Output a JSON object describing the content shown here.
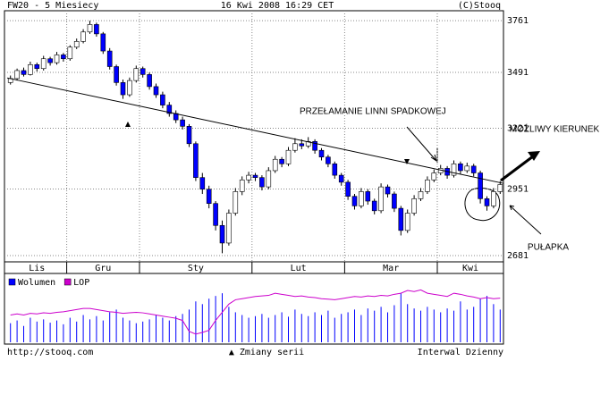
{
  "header": {
    "left": "FW20 - 5 Miesiecy",
    "center": "16 Kwi 2008 16:29 CET",
    "right": "(C)Stooq"
  },
  "footer": {
    "left": "http://stooq.com",
    "center": "▲ Zmiany serii",
    "right": "Interwal Dzienny"
  },
  "annotations": {
    "breakout": "PRZEŁAMANIE LINNI SPADKOWEJ",
    "direction": "MOŻLIWY KIERUNEK",
    "trap": "PUŁAPKA"
  },
  "chart_data": [
    {
      "type": "candlestick",
      "log_scale": true,
      "ylim": [
        2657,
        3815
      ],
      "yticks": [
        3761,
        3491,
        3221,
        2951,
        2681
      ],
      "grid": true,
      "up_color": "#ffffff",
      "down_color": "#0000ff",
      "trend_line": {
        "start": 3463,
        "end": 2975
      },
      "months": [
        {
          "label": "Lis",
          "candles": [
            [
              3440,
              3475,
              3430,
              3460
            ],
            [
              3460,
              3510,
              3450,
              3500
            ],
            [
              3500,
              3515,
              3470,
              3480
            ],
            [
              3480,
              3545,
              3475,
              3530
            ],
            [
              3530,
              3540,
              3495,
              3510
            ],
            [
              3510,
              3575,
              3500,
              3560
            ],
            [
              3560,
              3570,
              3525,
              3540
            ],
            [
              3540,
              3595,
              3530,
              3580
            ],
            [
              3580,
              3590,
              3545,
              3560
            ]
          ]
        },
        {
          "label": "Gru",
          "candles": [
            [
              3560,
              3630,
              3550,
              3620
            ],
            [
              3620,
              3665,
              3610,
              3650
            ],
            [
              3650,
              3715,
              3640,
              3700
            ],
            [
              3700,
              3760,
              3690,
              3740
            ],
            [
              3740,
              3750,
              3675,
              3690
            ],
            [
              3690,
              3700,
              3585,
              3600
            ],
            [
              3600,
              3615,
              3505,
              3520
            ],
            [
              3520,
              3530,
              3425,
              3440
            ],
            [
              3440,
              3455,
              3360,
              3380
            ],
            [
              3380,
              3465,
              3370,
              3450
            ],
            [
              3450,
              3525,
              3440,
              3510
            ]
          ]
        },
        {
          "label": "Sty",
          "candles": [
            [
              3510,
              3520,
              3465,
              3480
            ],
            [
              3480,
              3490,
              3405,
              3420
            ],
            [
              3420,
              3435,
              3365,
              3380
            ],
            [
              3380,
              3395,
              3315,
              3330
            ],
            [
              3330,
              3345,
              3275,
              3290
            ],
            [
              3290,
              3305,
              3245,
              3260
            ],
            [
              3260,
              3275,
              3215,
              3230
            ],
            [
              3230,
              3240,
              3135,
              3150
            ],
            [
              3150,
              3160,
              2985,
              3000
            ],
            [
              3000,
              3020,
              2930,
              2950
            ],
            [
              2950,
              2965,
              2870,
              2890
            ],
            [
              2890,
              2900,
              2780,
              2800
            ],
            [
              2800,
              2820,
              2690,
              2730
            ],
            [
              2730,
              2865,
              2720,
              2850
            ],
            [
              2850,
              2955,
              2840,
              2940
            ],
            [
              2940,
              3005,
              2925,
              2990
            ],
            [
              2990,
              3025,
              2975,
              3010
            ]
          ]
        },
        {
          "label": "Lut",
          "candles": [
            [
              3010,
              3020,
              2985,
              3000
            ],
            [
              3000,
              3010,
              2945,
              2960
            ],
            [
              2960,
              3045,
              2950,
              3030
            ],
            [
              3030,
              3095,
              3020,
              3080
            ],
            [
              3080,
              3090,
              3045,
              3060
            ],
            [
              3060,
              3135,
              3050,
              3120
            ],
            [
              3120,
              3175,
              3110,
              3150
            ],
            [
              3150,
              3170,
              3125,
              3140
            ],
            [
              3140,
              3180,
              3130,
              3160
            ],
            [
              3160,
              3170,
              3105,
              3120
            ],
            [
              3120,
              3130,
              3075,
              3090
            ],
            [
              3090,
              3100,
              3045,
              3060
            ],
            [
              3060,
              3070,
              2995,
              3010
            ],
            [
              3010,
              3020,
              2965,
              2980
            ]
          ]
        },
        {
          "label": "Mar",
          "candles": [
            [
              2980,
              2990,
              2905,
              2920
            ],
            [
              2920,
              2930,
              2865,
              2880
            ],
            [
              2880,
              2955,
              2870,
              2940
            ],
            [
              2940,
              2950,
              2885,
              2900
            ],
            [
              2900,
              2910,
              2845,
              2860
            ],
            [
              2860,
              2975,
              2850,
              2960
            ],
            [
              2960,
              2970,
              2915,
              2930
            ],
            [
              2930,
              2940,
              2855,
              2870
            ],
            [
              2870,
              2880,
              2760,
              2780
            ],
            [
              2780,
              2865,
              2770,
              2850
            ],
            [
              2850,
              2925,
              2840,
              2910
            ],
            [
              2910,
              2955,
              2900,
              2940
            ],
            [
              2940,
              3005,
              2930,
              2990
            ],
            [
              2990,
              3035,
              2980,
              3020
            ]
          ]
        },
        {
          "label": "Kwi",
          "candles": [
            [
              3020,
              3055,
              3010,
              3040
            ],
            [
              3040,
              3050,
              2995,
              3010
            ],
            [
              3010,
              3075,
              3000,
              3060
            ],
            [
              3060,
              3070,
              3015,
              3030
            ],
            [
              3030,
              3065,
              3020,
              3050
            ],
            [
              3050,
              3060,
              3005,
              3020
            ],
            [
              3020,
              3030,
              2890,
              2910
            ],
            [
              2910,
              2920,
              2860,
              2880
            ],
            [
              2880,
              2955,
              2870,
              2940
            ],
            [
              2940,
              2985,
              2930,
              2970
            ]
          ]
        }
      ]
    },
    {
      "type": "bar-line",
      "ylim": [
        0,
        100
      ],
      "series": [
        {
          "name": "Wolumen",
          "color": "#0000ff",
          "values": [
            35,
            40,
            30,
            45,
            38,
            42,
            36,
            40,
            33,
            45,
            38,
            50,
            42,
            48,
            40,
            55,
            60,
            45,
            40,
            35,
            38,
            42,
            50,
            45,
            40,
            48,
            52,
            60,
            75,
            70,
            80,
            85,
            90,
            65,
            55,
            50,
            45,
            48,
            52,
            45,
            50,
            55,
            47,
            60,
            52,
            48,
            55,
            50,
            58,
            45,
            52,
            55,
            60,
            50,
            62,
            58,
            65,
            55,
            68,
            90,
            70,
            62,
            58,
            65,
            60,
            55,
            62,
            58,
            75,
            60,
            65,
            80,
            85,
            70,
            60
          ]
        },
        {
          "name": "LOP",
          "color": "#cc00cc",
          "values": [
            50,
            52,
            50,
            53,
            52,
            54,
            53,
            55,
            56,
            58,
            60,
            62,
            62,
            60,
            58,
            56,
            55,
            53,
            54,
            55,
            54,
            52,
            50,
            48,
            46,
            44,
            40,
            20,
            15,
            18,
            22,
            40,
            55,
            70,
            78,
            80,
            82,
            84,
            85,
            86,
            90,
            88,
            86,
            84,
            85,
            83,
            82,
            80,
            79,
            78,
            80,
            82,
            84,
            83,
            85,
            84,
            86,
            85,
            88,
            90,
            95,
            93,
            96,
            90,
            88,
            86,
            84,
            90,
            88,
            85,
            83,
            80,
            82,
            80,
            81
          ]
        }
      ]
    }
  ]
}
